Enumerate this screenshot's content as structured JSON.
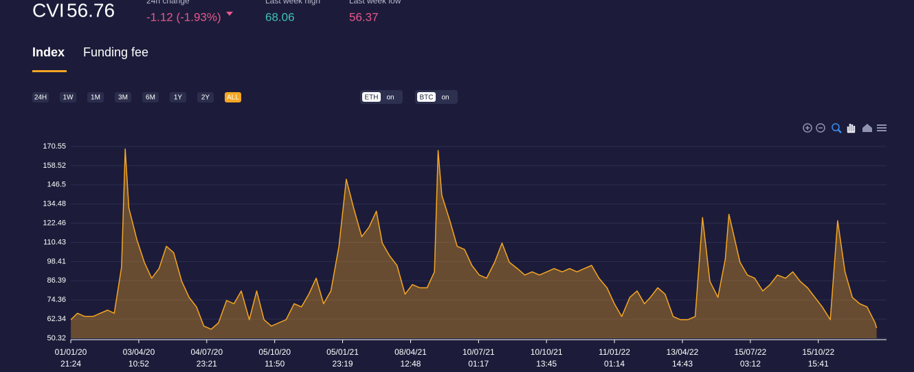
{
  "header": {
    "symbol": "CVI",
    "value": "56.76",
    "change_label": "24h change",
    "change_value": "-1.12 (-1.93%)",
    "high_label": "Last week high",
    "high_value": "68.06",
    "low_label": "Last week low",
    "low_value": "56.37"
  },
  "tabs": [
    "Index",
    "Funding fee"
  ],
  "ranges": [
    "24H",
    "1W",
    "1M",
    "3M",
    "6M",
    "1Y",
    "2Y",
    "ALL"
  ],
  "toggles": [
    {
      "name": "ETH",
      "state": "on"
    },
    {
      "name": "BTC",
      "state": "on"
    }
  ],
  "chart_data": {
    "type": "area",
    "color": "#f5a623",
    "grid": true,
    "x": [
      "2020-01-02",
      "2020-01-11",
      "2020-01-21",
      "2020-02-01",
      "2020-02-11",
      "2020-02-21",
      "2020-03-01",
      "2020-03-11",
      "2020-03-16",
      "2020-03-21",
      "2020-04-01",
      "2020-04-11",
      "2020-04-21",
      "2020-05-01",
      "2020-05-11",
      "2020-05-21",
      "2020-06-01",
      "2020-06-11",
      "2020-06-21",
      "2020-07-01",
      "2020-07-11",
      "2020-07-21",
      "2020-08-01",
      "2020-08-11",
      "2020-08-21",
      "2020-09-01",
      "2020-09-11",
      "2020-09-21",
      "2020-10-01",
      "2020-10-11",
      "2020-10-21",
      "2020-11-01",
      "2020-11-11",
      "2020-11-21",
      "2020-12-01",
      "2020-12-11",
      "2020-12-21",
      "2021-01-01",
      "2021-01-11",
      "2021-01-21",
      "2021-02-01",
      "2021-02-11",
      "2021-02-21",
      "2021-03-01",
      "2021-03-11",
      "2021-03-21",
      "2021-04-01",
      "2021-04-11",
      "2021-04-21",
      "2021-05-01",
      "2021-05-11",
      "2021-05-16",
      "2021-05-21",
      "2021-06-01",
      "2021-06-11",
      "2021-06-21",
      "2021-07-01",
      "2021-07-11",
      "2021-07-21",
      "2021-08-01",
      "2021-08-11",
      "2021-08-21",
      "2021-09-01",
      "2021-09-11",
      "2021-09-21",
      "2021-10-01",
      "2021-10-11",
      "2021-10-21",
      "2021-11-01",
      "2021-11-11",
      "2021-11-21",
      "2021-12-01",
      "2021-12-11",
      "2021-12-21",
      "2022-01-01",
      "2022-01-11",
      "2022-01-21",
      "2022-02-01",
      "2022-02-11",
      "2022-02-21",
      "2022-03-01",
      "2022-03-11",
      "2022-03-21",
      "2022-04-01",
      "2022-04-11",
      "2022-04-21",
      "2022-05-01",
      "2022-05-11",
      "2022-05-21",
      "2022-06-01",
      "2022-06-11",
      "2022-06-16",
      "2022-06-21",
      "2022-07-01",
      "2022-07-11",
      "2022-07-21",
      "2022-08-01",
      "2022-08-11",
      "2022-08-21",
      "2022-09-01",
      "2022-09-11",
      "2022-09-21",
      "2022-10-01",
      "2022-10-11",
      "2022-10-21",
      "2022-11-01",
      "2022-11-11",
      "2022-11-21",
      "2022-12-01",
      "2022-12-11",
      "2022-12-21",
      "2023-01-01",
      "2023-01-03"
    ],
    "values": [
      62,
      66,
      64,
      64,
      66,
      68,
      66,
      95,
      169,
      132,
      112,
      98,
      88,
      94,
      108,
      104,
      86,
      76,
      70,
      58,
      56,
      60,
      74,
      72,
      80,
      62,
      80,
      62,
      58,
      60,
      62,
      72,
      70,
      78,
      88,
      72,
      80,
      108,
      150,
      132,
      114,
      120,
      130,
      110,
      102,
      96,
      78,
      84,
      82,
      82,
      92,
      168,
      140,
      124,
      108,
      106,
      96,
      90,
      88,
      98,
      110,
      98,
      94,
      90,
      92,
      90,
      92,
      94,
      92,
      94,
      92,
      94,
      96,
      88,
      82,
      72,
      64,
      76,
      80,
      72,
      76,
      82,
      78,
      64,
      62,
      62,
      64,
      126,
      86,
      76,
      100,
      128,
      118,
      98,
      90,
      88,
      80,
      84,
      90,
      88,
      92,
      86,
      82,
      76,
      70,
      62,
      124,
      92,
      76,
      72,
      70,
      60,
      56.76
    ],
    "xlim": [
      "2020-01-01T21:24",
      "2023-01-16T12:00"
    ],
    "xticks": [
      {
        "value": "2020-01-01T21:24",
        "label": [
          "01/01/20",
          "21:24"
        ]
      },
      {
        "value": "2020-04-03T10:52",
        "label": [
          "03/04/20",
          "10:52"
        ]
      },
      {
        "value": "2020-07-04T23:21",
        "label": [
          "04/07/20",
          "23:21"
        ]
      },
      {
        "value": "2020-10-05T11:50",
        "label": [
          "05/10/20",
          "11:50"
        ]
      },
      {
        "value": "2021-01-05T23:19",
        "label": [
          "05/01/21",
          "23:19"
        ]
      },
      {
        "value": "2021-04-08T12:48",
        "label": [
          "08/04/21",
          "12:48"
        ]
      },
      {
        "value": "2021-07-10T01:17",
        "label": [
          "10/07/21",
          "01:17"
        ]
      },
      {
        "value": "2021-10-10T13:45",
        "label": [
          "10/10/21",
          "13:45"
        ]
      },
      {
        "value": "2022-01-11T01:14",
        "label": [
          "11/01/22",
          "01:14"
        ]
      },
      {
        "value": "2022-04-13T14:43",
        "label": [
          "13/04/22",
          "14:43"
        ]
      },
      {
        "value": "2022-07-15T03:12",
        "label": [
          "15/07/22",
          "03:12"
        ]
      },
      {
        "value": "2022-10-15T15:41",
        "label": [
          "15/10/22",
          "15:41"
        ]
      }
    ],
    "ylim": [
      50.32,
      170.55
    ],
    "yticks": [
      50.32,
      62.34,
      74.36,
      86.39,
      98.41,
      110.43,
      122.46,
      134.48,
      146.5,
      158.52,
      170.55
    ]
  }
}
